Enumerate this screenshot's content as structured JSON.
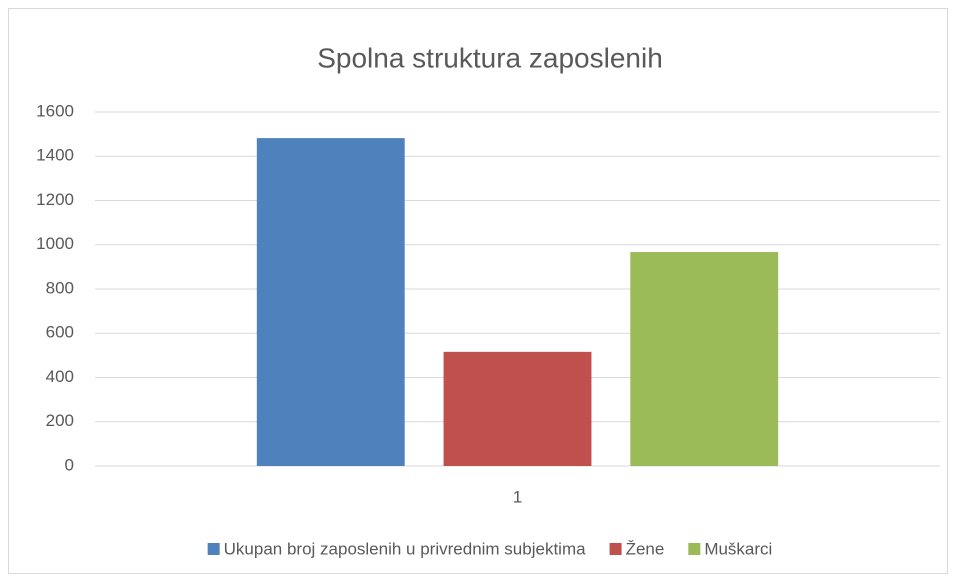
{
  "chart_data": {
    "type": "bar",
    "title": "Spolna struktura zaposlenih",
    "categories": [
      "1"
    ],
    "series": [
      {
        "name": "Ukupan broj zaposlenih u privrednim subjektima",
        "color": "#4f81bd",
        "values": [
          1482
        ]
      },
      {
        "name": "Žene",
        "color": "#c0504d",
        "values": [
          516
        ]
      },
      {
        "name": "Muškarci",
        "color": "#9bbb59",
        "values": [
          967
        ]
      }
    ],
    "ylim": [
      0,
      1600
    ],
    "yticks": [
      0,
      200,
      400,
      600,
      800,
      1000,
      1200,
      1400,
      1600
    ],
    "grid": true,
    "legend": "bottom"
  }
}
